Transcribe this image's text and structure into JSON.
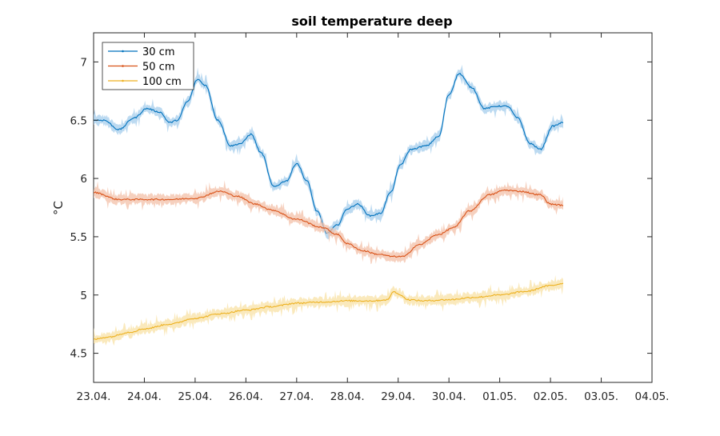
{
  "chart_data": {
    "type": "line",
    "title": "soil temperature deep",
    "ylabel": "°C",
    "xlabel": "",
    "ylim": [
      4.25,
      7.25
    ],
    "xlim_days": [
      0,
      11
    ],
    "x_ticks": [
      {
        "label": "23.04.",
        "day": 0
      },
      {
        "label": "24.04.",
        "day": 1
      },
      {
        "label": "25.04.",
        "day": 2
      },
      {
        "label": "26.04.",
        "day": 3
      },
      {
        "label": "27.04.",
        "day": 4
      },
      {
        "label": "28.04.",
        "day": 5
      },
      {
        "label": "29.04.",
        "day": 6
      },
      {
        "label": "30.04.",
        "day": 7
      },
      {
        "label": "01.05.",
        "day": 8
      },
      {
        "label": "02.05.",
        "day": 9
      },
      {
        "label": "03.05.",
        "day": 10
      },
      {
        "label": "04.05.",
        "day": 11
      }
    ],
    "y_ticks": [
      {
        "label": "4.5",
        "value": 4.5
      },
      {
        "label": "5",
        "value": 5
      },
      {
        "label": "5.5",
        "value": 5.5
      },
      {
        "label": "6",
        "value": 6
      },
      {
        "label": "6.5",
        "value": 6.5
      },
      {
        "label": "7",
        "value": 7
      }
    ],
    "grid": false,
    "legend_position": "top-left",
    "series": [
      {
        "name": "30 cm",
        "color": "#0072BD",
        "band_color": "#A6CEEC",
        "x": [
          0,
          0.2,
          0.5,
          0.8,
          1.05,
          1.3,
          1.5,
          1.65,
          1.85,
          2.05,
          2.2,
          2.45,
          2.7,
          2.9,
          3.1,
          3.3,
          3.55,
          3.8,
          4.0,
          4.2,
          4.4,
          4.6,
          4.8,
          5.0,
          5.2,
          5.45,
          5.65,
          5.85,
          6.05,
          6.25,
          6.55,
          6.8,
          7.0,
          7.2,
          7.45,
          7.7,
          7.95,
          8.15,
          8.35,
          8.6,
          8.8,
          9.05,
          9.25
        ],
        "y": [
          6.5,
          6.5,
          6.42,
          6.52,
          6.6,
          6.57,
          6.48,
          6.5,
          6.66,
          6.85,
          6.8,
          6.5,
          6.28,
          6.3,
          6.38,
          6.22,
          5.93,
          5.98,
          6.13,
          5.98,
          5.72,
          5.53,
          5.6,
          5.74,
          5.78,
          5.68,
          5.7,
          5.88,
          6.12,
          6.25,
          6.28,
          6.36,
          6.72,
          6.9,
          6.78,
          6.6,
          6.62,
          6.62,
          6.52,
          6.3,
          6.25,
          6.45,
          6.48
        ]
      },
      {
        "name": "50 cm",
        "color": "#D95319",
        "band_color": "#F3C0A8",
        "x": [
          0,
          0.5,
          1.0,
          1.5,
          2.0,
          2.5,
          2.8,
          3.2,
          3.5,
          4.0,
          4.5,
          4.8,
          5.0,
          5.3,
          5.6,
          5.9,
          6.1,
          6.4,
          6.8,
          7.1,
          7.4,
          7.8,
          8.1,
          8.4,
          8.8,
          9.0,
          9.25
        ],
        "y": [
          5.88,
          5.82,
          5.82,
          5.82,
          5.83,
          5.89,
          5.85,
          5.78,
          5.73,
          5.65,
          5.58,
          5.52,
          5.44,
          5.38,
          5.35,
          5.33,
          5.33,
          5.43,
          5.52,
          5.58,
          5.72,
          5.86,
          5.9,
          5.89,
          5.86,
          5.78,
          5.77
        ]
      },
      {
        "name": "100 cm",
        "color": "#EDB120",
        "band_color": "#F8E2A6",
        "x": [
          0,
          0.3,
          0.7,
          1.0,
          1.5,
          2.0,
          2.5,
          3.0,
          3.5,
          4.0,
          4.5,
          5.0,
          5.5,
          5.8,
          5.9,
          6.0,
          6.2,
          6.5,
          7.0,
          7.5,
          8.0,
          8.5,
          9.0,
          9.25
        ],
        "y": [
          4.62,
          4.64,
          4.68,
          4.71,
          4.75,
          4.8,
          4.84,
          4.87,
          4.9,
          4.93,
          4.94,
          4.95,
          4.95,
          4.96,
          5.03,
          5.01,
          4.96,
          4.95,
          4.96,
          4.98,
          5.0,
          5.03,
          5.08,
          5.1
        ]
      }
    ]
  }
}
